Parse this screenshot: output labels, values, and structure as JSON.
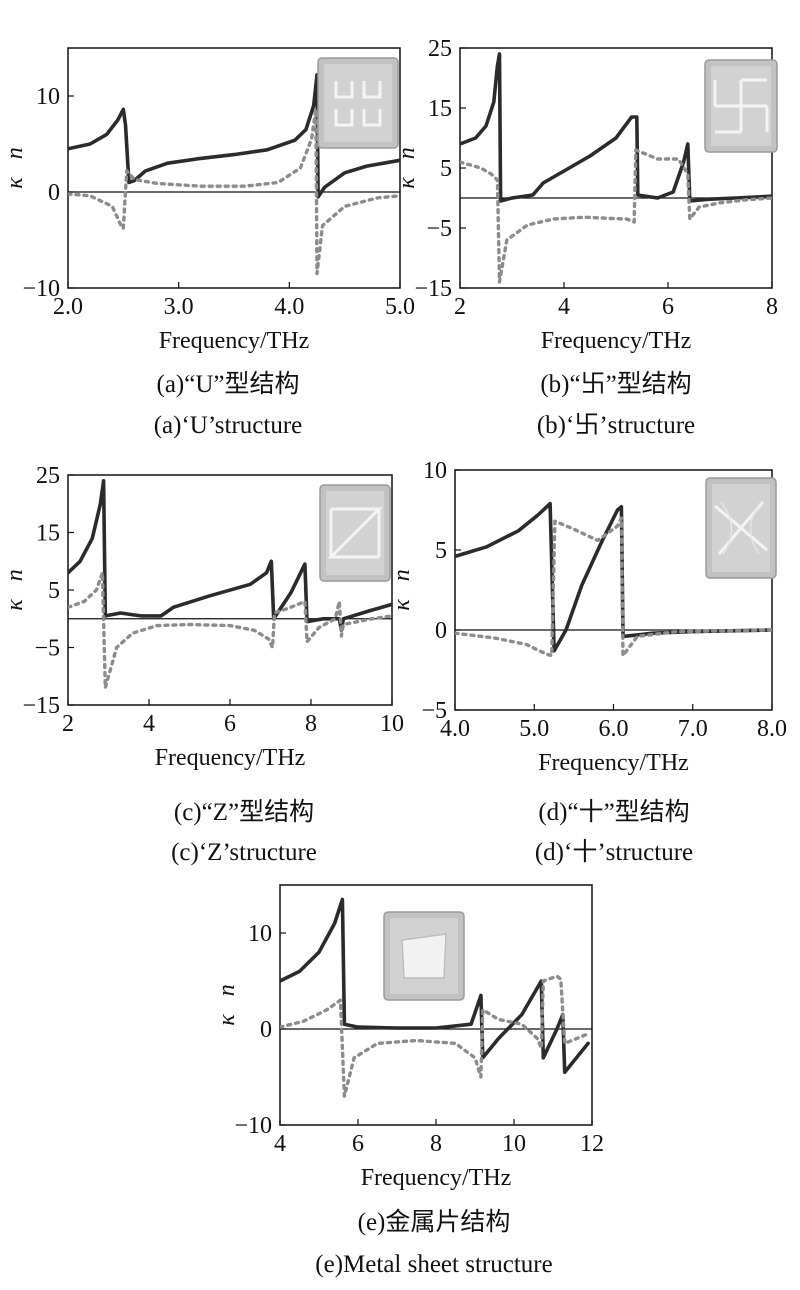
{
  "chart_data": [
    {
      "id": "a",
      "type": "line",
      "xlabel": "Frequency/THz",
      "ylabel_n": "n",
      "ylabel_k": "κ",
      "xlim": [
        2.0,
        5.0
      ],
      "ylim": [
        -10,
        15
      ],
      "xticks": [
        2.0,
        3.0,
        4.0,
        5.0
      ],
      "xtick_labels": [
        "2.0",
        "3.0",
        "4.0",
        "5.0"
      ],
      "yticks": [
        -10,
        0,
        10
      ],
      "ytick_labels": [
        "−10",
        "0",
        "10"
      ],
      "caption_cn": "(a)“U”型结构",
      "caption_en": "(a)‘U’structure",
      "inset_icon": "u-structure-icon",
      "series": [
        {
          "style": "solid",
          "points": [
            [
              2.0,
              4.5
            ],
            [
              2.2,
              5.0
            ],
            [
              2.35,
              6.0
            ],
            [
              2.45,
              7.5
            ],
            [
              2.5,
              8.6
            ],
            [
              2.52,
              7.0
            ],
            [
              2.55,
              1.0
            ],
            [
              2.6,
              1.2
            ],
            [
              2.7,
              2.2
            ],
            [
              2.9,
              3.0
            ],
            [
              3.2,
              3.5
            ],
            [
              3.5,
              3.9
            ],
            [
              3.8,
              4.4
            ],
            [
              4.05,
              5.4
            ],
            [
              4.15,
              6.5
            ],
            [
              4.22,
              9.0
            ],
            [
              4.25,
              12.2
            ],
            [
              4.26,
              -0.5
            ],
            [
              4.32,
              0.5
            ],
            [
              4.5,
              2.0
            ],
            [
              4.7,
              2.7
            ],
            [
              5.0,
              3.3
            ]
          ]
        },
        {
          "style": "dashed",
          "points": [
            [
              2.0,
              -0.2
            ],
            [
              2.2,
              -0.4
            ],
            [
              2.4,
              -1.5
            ],
            [
              2.48,
              -3.5
            ],
            [
              2.5,
              -3.8
            ],
            [
              2.53,
              2.2
            ],
            [
              2.6,
              1.3
            ],
            [
              2.8,
              0.9
            ],
            [
              3.2,
              0.6
            ],
            [
              3.6,
              0.6
            ],
            [
              3.9,
              1.0
            ],
            [
              4.1,
              2.5
            ],
            [
              4.2,
              5.5
            ],
            [
              4.24,
              8.6
            ],
            [
              4.25,
              -8.5
            ],
            [
              4.3,
              -3.5
            ],
            [
              4.5,
              -1.5
            ],
            [
              4.8,
              -0.6
            ],
            [
              5.0,
              -0.4
            ]
          ]
        }
      ]
    },
    {
      "id": "b",
      "type": "line",
      "xlabel": "Frequency/THz",
      "ylabel_n": "n",
      "ylabel_k": "κ",
      "xlim": [
        2,
        8
      ],
      "ylim": [
        -15,
        25
      ],
      "xticks": [
        2,
        4,
        6,
        8
      ],
      "xtick_labels": [
        "2",
        "4",
        "6",
        "8"
      ],
      "yticks": [
        -15,
        -5,
        5,
        15,
        25
      ],
      "ytick_labels": [
        "−15",
        "−5",
        "5",
        "15",
        "25"
      ],
      "caption_cn": "(b)“卐”型结构",
      "caption_en": "(b)‘卐’structure",
      "inset_icon": "swastika-structure-icon",
      "series": [
        {
          "style": "solid",
          "points": [
            [
              2.0,
              9
            ],
            [
              2.3,
              10
            ],
            [
              2.5,
              12
            ],
            [
              2.65,
              16
            ],
            [
              2.72,
              22
            ],
            [
              2.76,
              24
            ],
            [
              2.78,
              -0.5
            ],
            [
              3.0,
              0
            ],
            [
              3.4,
              0.5
            ],
            [
              3.6,
              2.5
            ],
            [
              4.0,
              4.5
            ],
            [
              4.5,
              7
            ],
            [
              5.0,
              10
            ],
            [
              5.3,
              13.5
            ],
            [
              5.4,
              13.5
            ],
            [
              5.42,
              0.5
            ],
            [
              5.8,
              0
            ],
            [
              6.1,
              1
            ],
            [
              6.3,
              6
            ],
            [
              6.38,
              9
            ],
            [
              6.42,
              -0.5
            ],
            [
              6.8,
              -0.2
            ],
            [
              7.3,
              0
            ],
            [
              8.0,
              0.3
            ]
          ]
        },
        {
          "style": "dashed",
          "points": [
            [
              2.0,
              6
            ],
            [
              2.4,
              5
            ],
            [
              2.6,
              4
            ],
            [
              2.72,
              3
            ],
            [
              2.76,
              -14
            ],
            [
              2.9,
              -7
            ],
            [
              3.3,
              -4.5
            ],
            [
              3.8,
              -3.5
            ],
            [
              4.4,
              -3.2
            ],
            [
              4.9,
              -3.4
            ],
            [
              5.2,
              -3.5
            ],
            [
              5.35,
              -4.0
            ],
            [
              5.38,
              8
            ],
            [
              5.8,
              6.5
            ],
            [
              6.2,
              6.5
            ],
            [
              6.38,
              4
            ],
            [
              6.42,
              -3.5
            ],
            [
              6.6,
              -1.5
            ],
            [
              7.0,
              -0.8
            ],
            [
              7.5,
              -0.3
            ],
            [
              8.0,
              0
            ]
          ]
        }
      ]
    },
    {
      "id": "c",
      "type": "line",
      "xlabel": "Frequency/THz",
      "ylabel_n": "n",
      "ylabel_k": "κ",
      "xlim": [
        2,
        10
      ],
      "ylim": [
        -15,
        25
      ],
      "xticks": [
        2,
        4,
        6,
        8,
        10
      ],
      "xtick_labels": [
        "2",
        "4",
        "6",
        "8",
        "10"
      ],
      "yticks": [
        -15,
        -5,
        5,
        15,
        25
      ],
      "ytick_labels": [
        "−15",
        "−5",
        "5",
        "15",
        "25"
      ],
      "caption_cn": "(c)“Z”型结构",
      "caption_en": "(c)‘Z’structure",
      "inset_icon": "z-structure-icon",
      "series": [
        {
          "style": "solid",
          "points": [
            [
              2.0,
              8
            ],
            [
              2.3,
              10
            ],
            [
              2.6,
              14
            ],
            [
              2.8,
              20
            ],
            [
              2.88,
              24
            ],
            [
              2.92,
              0.5
            ],
            [
              3.3,
              1
            ],
            [
              3.8,
              0.5
            ],
            [
              4.3,
              0.5
            ],
            [
              4.6,
              2
            ],
            [
              5.5,
              4
            ],
            [
              6.5,
              6
            ],
            [
              6.9,
              8
            ],
            [
              7.02,
              10
            ],
            [
              7.08,
              0
            ],
            [
              7.5,
              4.5
            ],
            [
              7.85,
              9.5
            ],
            [
              7.9,
              -0.5
            ],
            [
              8.3,
              0
            ],
            [
              8.7,
              0
            ],
            [
              8.75,
              -2
            ],
            [
              8.8,
              0
            ],
            [
              9.5,
              1.5
            ],
            [
              10.0,
              2.5
            ]
          ]
        },
        {
          "style": "dashed",
          "points": [
            [
              2.0,
              2
            ],
            [
              2.4,
              3
            ],
            [
              2.7,
              5
            ],
            [
              2.85,
              8
            ],
            [
              2.92,
              -12
            ],
            [
              3.2,
              -5
            ],
            [
              3.6,
              -2.5
            ],
            [
              4.2,
              -1.2
            ],
            [
              5.0,
              -1
            ],
            [
              6.0,
              -1.2
            ],
            [
              6.6,
              -2
            ],
            [
              6.95,
              -3.5
            ],
            [
              7.05,
              -5
            ],
            [
              7.1,
              1
            ],
            [
              7.5,
              2
            ],
            [
              7.85,
              3
            ],
            [
              7.9,
              -4
            ],
            [
              8.2,
              -1.5
            ],
            [
              8.6,
              0
            ],
            [
              8.7,
              3
            ],
            [
              8.75,
              -3
            ],
            [
              8.8,
              -1
            ],
            [
              9.5,
              0
            ],
            [
              10.0,
              0.5
            ]
          ]
        }
      ]
    },
    {
      "id": "d",
      "type": "line",
      "xlabel": "Frequency/THz",
      "ylabel_n": "n",
      "ylabel_k": "κ",
      "xlim": [
        4.0,
        8.0
      ],
      "ylim": [
        -5,
        10
      ],
      "xticks": [
        4.0,
        5.0,
        6.0,
        7.0,
        8.0
      ],
      "xtick_labels": [
        "4.0",
        "5.0",
        "6.0",
        "7.0",
        "8.0"
      ],
      "yticks": [
        -5,
        0,
        5,
        10
      ],
      "ytick_labels": [
        "−5",
        "0",
        "5",
        "10"
      ],
      "caption_cn": "(d)“十”型结构",
      "caption_en": "(d)‘十’structure",
      "inset_icon": "cross-structure-icon",
      "series": [
        {
          "style": "solid",
          "points": [
            [
              4.0,
              4.6
            ],
            [
              4.4,
              5.2
            ],
            [
              4.8,
              6.2
            ],
            [
              5.05,
              7.2
            ],
            [
              5.2,
              7.9
            ],
            [
              5.25,
              -1.3
            ],
            [
              5.4,
              0
            ],
            [
              5.6,
              2.8
            ],
            [
              5.85,
              5.5
            ],
            [
              6.05,
              7.5
            ],
            [
              6.1,
              7.7
            ],
            [
              6.12,
              -0.4
            ],
            [
              6.5,
              -0.2
            ],
            [
              7.0,
              -0.1
            ],
            [
              8.0,
              0
            ]
          ]
        },
        {
          "style": "dashed",
          "points": [
            [
              4.0,
              -0.2
            ],
            [
              4.5,
              -0.5
            ],
            [
              4.9,
              -0.9
            ],
            [
              5.15,
              -1.5
            ],
            [
              5.22,
              -1.6
            ],
            [
              5.26,
              6.8
            ],
            [
              5.5,
              6.3
            ],
            [
              5.8,
              5.6
            ],
            [
              6.05,
              6.5
            ],
            [
              6.1,
              7.0
            ],
            [
              6.12,
              -1.6
            ],
            [
              6.3,
              -0.4
            ],
            [
              6.8,
              -0.1
            ],
            [
              8.0,
              0
            ]
          ]
        }
      ]
    },
    {
      "id": "e",
      "type": "line",
      "xlabel": "Frequency/THz",
      "ylabel_n": "n",
      "ylabel_k": "κ",
      "xlim": [
        4,
        12
      ],
      "ylim": [
        -10,
        15
      ],
      "xticks": [
        4,
        6,
        8,
        10,
        12
      ],
      "xtick_labels": [
        "4",
        "6",
        "8",
        "10",
        "12"
      ],
      "yticks": [
        -10,
        0,
        10
      ],
      "ytick_labels": [
        "−10",
        "0",
        "10"
      ],
      "caption_cn": "(e)金属片结构",
      "caption_en": "(e)Metal sheet structure",
      "inset_icon": "metal-sheet-icon",
      "series": [
        {
          "style": "solid",
          "points": [
            [
              4.0,
              5
            ],
            [
              4.5,
              6
            ],
            [
              5.0,
              8
            ],
            [
              5.4,
              11
            ],
            [
              5.6,
              13.5
            ],
            [
              5.65,
              0.5
            ],
            [
              6.0,
              0.2
            ],
            [
              7.0,
              0.1
            ],
            [
              8.0,
              0.1
            ],
            [
              8.9,
              0.5
            ],
            [
              9.15,
              3.5
            ],
            [
              9.2,
              -3
            ],
            [
              9.6,
              -1
            ],
            [
              10.2,
              1.5
            ],
            [
              10.7,
              5
            ],
            [
              10.75,
              -3
            ],
            [
              11.1,
              0
            ],
            [
              11.25,
              1.5
            ],
            [
              11.3,
              -4.5
            ],
            [
              11.9,
              -1.5
            ]
          ]
        },
        {
          "style": "dashed",
          "points": [
            [
              4.0,
              0.2
            ],
            [
              4.6,
              0.8
            ],
            [
              5.2,
              2
            ],
            [
              5.55,
              3
            ],
            [
              5.65,
              -7
            ],
            [
              5.9,
              -3
            ],
            [
              6.5,
              -1.5
            ],
            [
              7.5,
              -1.2
            ],
            [
              8.5,
              -1.5
            ],
            [
              9.0,
              -3
            ],
            [
              9.15,
              -5
            ],
            [
              9.2,
              2
            ],
            [
              9.6,
              1
            ],
            [
              10.2,
              0.5
            ],
            [
              10.6,
              -1
            ],
            [
              10.7,
              -2
            ],
            [
              10.75,
              5
            ],
            [
              11.1,
              5.5
            ],
            [
              11.2,
              5.2
            ],
            [
              11.3,
              -1.5
            ],
            [
              11.9,
              -0.5
            ]
          ]
        }
      ]
    }
  ]
}
